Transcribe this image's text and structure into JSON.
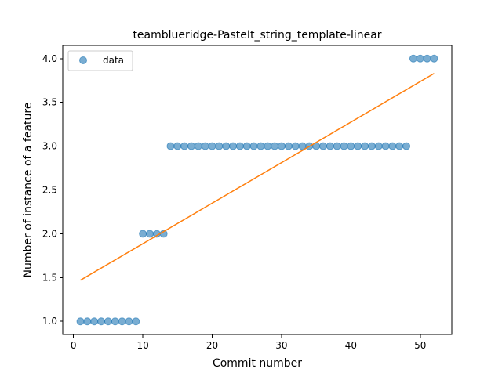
{
  "chart_data": {
    "type": "scatter",
    "title": "teamblueridge-PasteIt_string_template-linear",
    "xlabel": "Commit number",
    "ylabel": "Number of instance of a feature",
    "xlim": [
      -1.55,
      54.55
    ],
    "ylim": [
      0.85,
      4.15
    ],
    "xticks": [
      0,
      10,
      20,
      30,
      40,
      50
    ],
    "yticks": [
      1.0,
      1.5,
      2.0,
      2.5,
      3.0,
      3.5,
      4.0
    ],
    "xtick_labels": [
      "0",
      "10",
      "20",
      "30",
      "40",
      "50"
    ],
    "ytick_labels": [
      "1.0",
      "1.5",
      "2.0",
      "2.5",
      "3.0",
      "3.5",
      "4.0"
    ],
    "grid": false,
    "legend": {
      "position": "top-left",
      "entries": [
        "data"
      ]
    },
    "series": [
      {
        "name": "data",
        "kind": "scatter",
        "color": "#1f77b4",
        "points": [
          [
            1,
            1
          ],
          [
            2,
            1
          ],
          [
            3,
            1
          ],
          [
            4,
            1
          ],
          [
            5,
            1
          ],
          [
            6,
            1
          ],
          [
            7,
            1
          ],
          [
            8,
            1
          ],
          [
            9,
            1
          ],
          [
            10,
            2
          ],
          [
            11,
            2
          ],
          [
            12,
            2
          ],
          [
            13,
            2
          ],
          [
            14,
            3
          ],
          [
            15,
            3
          ],
          [
            16,
            3
          ],
          [
            17,
            3
          ],
          [
            18,
            3
          ],
          [
            19,
            3
          ],
          [
            20,
            3
          ],
          [
            21,
            3
          ],
          [
            22,
            3
          ],
          [
            23,
            3
          ],
          [
            24,
            3
          ],
          [
            25,
            3
          ],
          [
            26,
            3
          ],
          [
            27,
            3
          ],
          [
            28,
            3
          ],
          [
            29,
            3
          ],
          [
            30,
            3
          ],
          [
            31,
            3
          ],
          [
            32,
            3
          ],
          [
            33,
            3
          ],
          [
            34,
            3
          ],
          [
            35,
            3
          ],
          [
            36,
            3
          ],
          [
            37,
            3
          ],
          [
            38,
            3
          ],
          [
            39,
            3
          ],
          [
            40,
            3
          ],
          [
            41,
            3
          ],
          [
            42,
            3
          ],
          [
            43,
            3
          ],
          [
            44,
            3
          ],
          [
            45,
            3
          ],
          [
            46,
            3
          ],
          [
            47,
            3
          ],
          [
            48,
            3
          ],
          [
            49,
            4
          ],
          [
            50,
            4
          ],
          [
            51,
            4
          ],
          [
            52,
            4
          ]
        ]
      },
      {
        "kind": "line",
        "color": "#ff7f0e",
        "points": [
          [
            1,
            1.47
          ],
          [
            52,
            3.83
          ]
        ]
      }
    ]
  }
}
